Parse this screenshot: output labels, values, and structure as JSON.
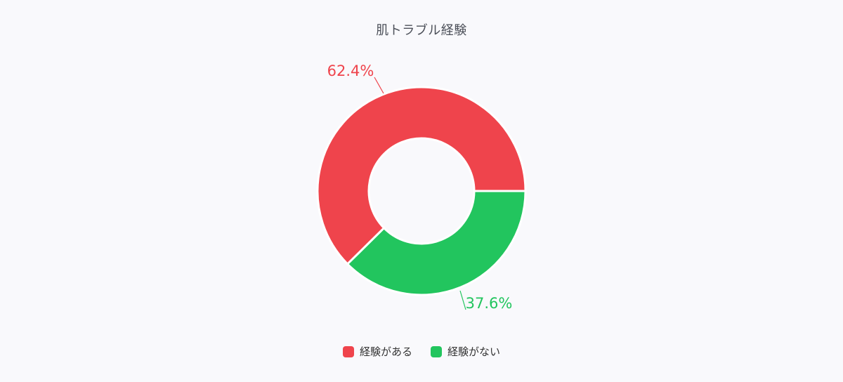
{
  "chart_data": {
    "type": "pie",
    "variant": "donut",
    "title": "肌トラブル経験",
    "categories": [
      "経験がある",
      "経験がない"
    ],
    "values": [
      62.4,
      37.6
    ],
    "unit": "%",
    "colors": [
      "#ef444c",
      "#22c55e"
    ],
    "labels": [
      "62.4%",
      "37.6%"
    ],
    "legend_position": "bottom"
  },
  "legend": {
    "items": [
      {
        "label": "経験がある",
        "color": "#ef444c"
      },
      {
        "label": "経験がない",
        "color": "#22c55e"
      }
    ]
  }
}
